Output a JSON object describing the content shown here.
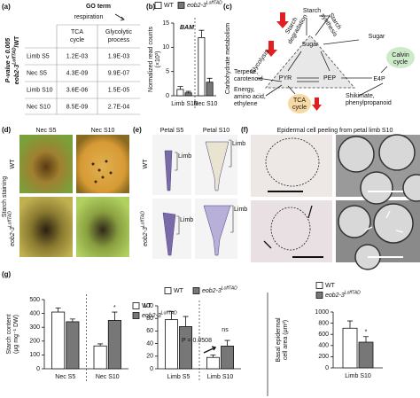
{
  "figure": {
    "panel_labels": [
      "(a)",
      "(b)",
      "(c)",
      "(d)",
      "(e)",
      "(f)",
      "(g)"
    ],
    "table": {
      "side_label": "P-value < 0.005",
      "side_ratio": [
        "eob2-3",
        "LoffTAD",
        "/WT"
      ],
      "go_term": "GO term",
      "respiration": "respiration",
      "columns": [
        [
          "TCA",
          "cycle"
        ],
        [
          "Glycolytic",
          "process"
        ]
      ],
      "rows": [
        [
          "Limb S5",
          "1.2E-03",
          "1.9E-03"
        ],
        [
          "Nec S5",
          "4.3E-09",
          "9.9E-07"
        ],
        [
          "Limb S10",
          "3.6E-06",
          "1.5E-05"
        ],
        [
          "Nec S10",
          "8.5E-09",
          "2.7E-04"
        ]
      ]
    },
    "diagram": {
      "axis_label": "Carbohydrate metabolism",
      "nodes": [
        {
          "label": [
            "Starch"
          ]
        },
        {
          "label": [
            "Starch",
            "degradation"
          ]
        },
        {
          "label": [
            "Starch",
            "synthesis"
          ]
        },
        {
          "label": [
            "Sugar"
          ]
        },
        {
          "label": [
            "Sugar"
          ]
        },
        {
          "label": [
            "Calvin",
            "cycle"
          ]
        },
        {
          "label": [
            "Glycolysis"
          ]
        },
        {
          "label": [
            "PYR"
          ]
        },
        {
          "label": [
            "PEP"
          ]
        },
        {
          "label": [
            "E4P"
          ]
        },
        {
          "label": [
            "Terpene,",
            "carotenoid"
          ]
        },
        {
          "label": [
            "Energy,",
            "amino acid,",
            "ethylene"
          ]
        },
        {
          "label": [
            "TCA",
            "cycle"
          ]
        },
        {
          "label": [
            "Shikimate,",
            "phenylpropanoid"
          ]
        }
      ]
    },
    "photos_d": {
      "columns": [
        "Nec S5",
        "Nec S10"
      ],
      "rows": [
        "WT",
        [
          "eob2-3",
          "LoffTAD"
        ]
      ],
      "side": "Starch staining"
    },
    "photos_e": {
      "columns": [
        "Petal S5",
        "Petal S10"
      ],
      "rows": [
        "WT",
        [
          "eob2-3",
          "LoffTAD"
        ]
      ],
      "limb": "Limb"
    },
    "photos_f": {
      "title": "Epidermal cell peeling from petal limb S10"
    }
  },
  "chart_data": [
    {
      "type": "bar",
      "title": "BAM",
      "ylabel": [
        "Normalized read counts",
        "(×10³)"
      ],
      "categories": [
        "Limb S10",
        "Nec S10"
      ],
      "series": [
        {
          "name": "WT",
          "color": "#ffffff",
          "values": [
            1.3,
            12
          ],
          "errors": [
            0.6,
            1.5
          ]
        },
        {
          "name": "eob2-3",
          "name_sup": "LoffTAD",
          "color": "#777777",
          "values": [
            0.6,
            2.8
          ],
          "errors": [
            0.3,
            0.8
          ]
        }
      ],
      "ylim": [
        0,
        15
      ],
      "yticks": [
        0,
        5,
        10,
        15
      ],
      "divider": true
    },
    {
      "type": "bar",
      "ylabel": [
        "Starch content",
        "(μg mg⁻¹ DW)"
      ],
      "categories": [
        "Nec S5",
        "Nec S10"
      ],
      "series": [
        {
          "name": "WT",
          "color": "#ffffff",
          "values": [
            410,
            165
          ],
          "errors": [
            30,
            15
          ]
        },
        {
          "name": "eob2-3",
          "name_sup": "LoffTAD",
          "color": "#777777",
          "values": [
            340,
            350
          ],
          "errors": [
            20,
            60
          ]
        }
      ],
      "ylim": [
        0,
        500
      ],
      "yticks": [
        0,
        100,
        200,
        300,
        400,
        500
      ],
      "divider": true,
      "annotations": [
        "*"
      ]
    },
    {
      "type": "bar",
      "categories": [
        "Limb S5",
        "Limb S10"
      ],
      "series": [
        {
          "name": "WT",
          "color": "#ffffff",
          "values": [
            78,
            18
          ],
          "errors": [
            13,
            4
          ]
        },
        {
          "name": "eob2-3",
          "name_sup": "LoffTAD",
          "color": "#777777",
          "values": [
            67,
            36
          ],
          "errors": [
            16,
            9
          ]
        }
      ],
      "ylim": [
        0,
        100
      ],
      "yticks": [
        0,
        20,
        40,
        60,
        80,
        100
      ],
      "divider": true,
      "annotations": [
        "ns",
        "P = 0.0508"
      ]
    },
    {
      "type": "bar",
      "ylabel": [
        "Basal epidermal",
        "cell area (μm²)"
      ],
      "categories": [
        "Limb S10"
      ],
      "series": [
        {
          "name": "WT",
          "color": "#ffffff",
          "values": [
            710
          ],
          "errors": [
            130
          ]
        },
        {
          "name": "eob2-3",
          "name_sup": "LoffTAD",
          "color": "#777777",
          "values": [
            460
          ],
          "errors": [
            100
          ]
        }
      ],
      "ylim": [
        0,
        1000
      ],
      "yticks": [
        0,
        200,
        400,
        600,
        800,
        1000
      ],
      "divider": false,
      "annotations": [
        "*"
      ]
    }
  ]
}
